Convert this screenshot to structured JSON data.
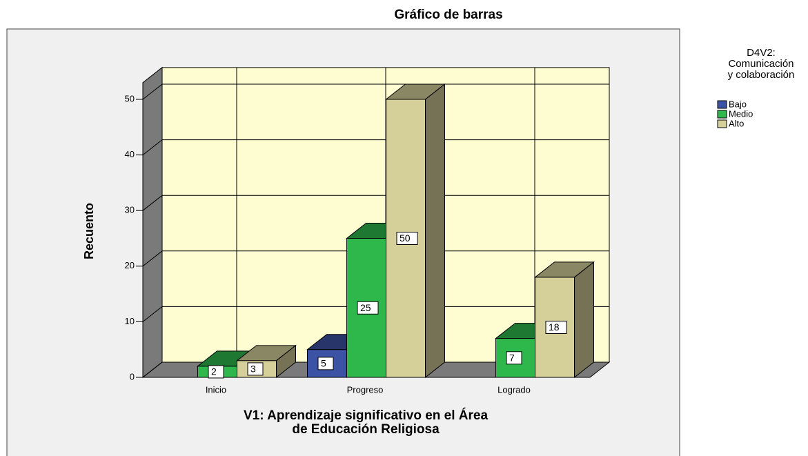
{
  "chart_data": {
    "type": "bar3d",
    "title": "Gráfico de barras",
    "ylabel": "Recuento",
    "xlabel": [
      "V1: Aprendizaje significativo en el Área",
      "de Educación Religiosa"
    ],
    "legend_title": [
      "D4V2:",
      "Comunicación",
      "y colaboración"
    ],
    "categories": [
      "Inicio",
      "Progreso",
      "Logrado"
    ],
    "series": [
      {
        "name": "Bajo",
        "color": "#3c52a4",
        "values": [
          null,
          5,
          null
        ]
      },
      {
        "name": "Medio",
        "color": "#2eb84b",
        "values": [
          2,
          25,
          7
        ]
      },
      {
        "name": "Alto",
        "color": "#d5cf9a",
        "values": [
          3,
          50,
          18
        ]
      }
    ],
    "ylim": [
      0,
      53
    ],
    "yticks": [
      0,
      10,
      20,
      30,
      40,
      50
    ],
    "grid": true,
    "legend": "right"
  }
}
